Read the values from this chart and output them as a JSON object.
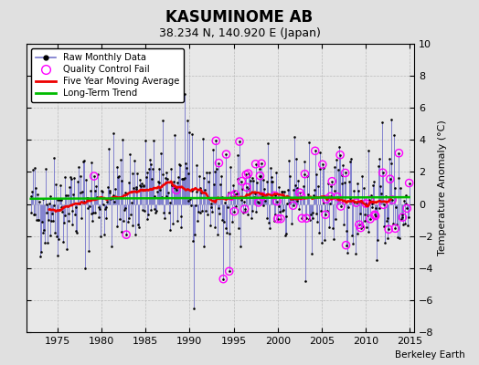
{
  "title": "KASUMINOME AB",
  "subtitle": "38.234 N, 140.920 E (Japan)",
  "ylabel": "Temperature Anomaly (°C)",
  "xlabel_watermark": "Berkeley Earth",
  "xlim": [
    1971.5,
    2015.5
  ],
  "ylim": [
    -8,
    10
  ],
  "yticks": [
    -8,
    -6,
    -4,
    -2,
    0,
    2,
    4,
    6,
    8,
    10
  ],
  "xticks": [
    1975,
    1980,
    1985,
    1990,
    1995,
    2000,
    2005,
    2010,
    2015
  ],
  "bg_color": "#e0e0e0",
  "plot_bg_color": "#e8e8e8",
  "raw_line_color": "#7777cc",
  "raw_dot_color": "#000000",
  "qc_color": "magenta",
  "moving_avg_color": "#ee0000",
  "trend_color": "#00bb00",
  "seed": 42
}
